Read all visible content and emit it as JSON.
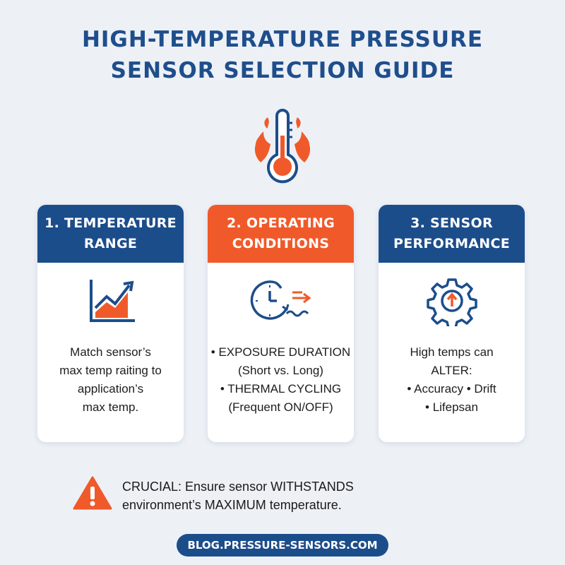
{
  "title": {
    "line1": "HIGH-TEMPERATURE PRESSURE",
    "line2": "SENSOR SELECTION GUIDE"
  },
  "hero_icon": "thermometer-flames-icon",
  "cards": [
    {
      "header": [
        "1. TEMPERATURE",
        "RANGE"
      ],
      "icon": "rising-chart-icon",
      "lines": [
        "Match sensor’s",
        "max temp raiting to",
        "application’s",
        "max temp."
      ]
    },
    {
      "header": [
        "2. OPERATING",
        "CONDITIONS"
      ],
      "icon": "clock-heat-flow-icon",
      "lines": [
        "• EXPOSURE DURATION",
        "(Short vs. Long)",
        "• THERMAL CYCLING",
        "(Frequent ON/OFF)"
      ]
    },
    {
      "header": [
        "3. SENSOR",
        "PERFORMANCE"
      ],
      "icon": "gear-arrow-icon",
      "lines": [
        "High temps can",
        "ALTER:",
        "• Accuracy  • Drift",
        "• Lifepsan"
      ]
    }
  ],
  "warning": {
    "icon": "warning-icon",
    "line1": "CRUCIAL: Ensure sensor WITHSTANDS",
    "line2": "environment’s MAXIMUM temperature."
  },
  "footer": {
    "url": "BLOG.PRESSURE-SENSORS.COM"
  },
  "colors": {
    "blue": "#1c4d8b",
    "orange": "#f05a2a",
    "background": "#edf1f6"
  }
}
